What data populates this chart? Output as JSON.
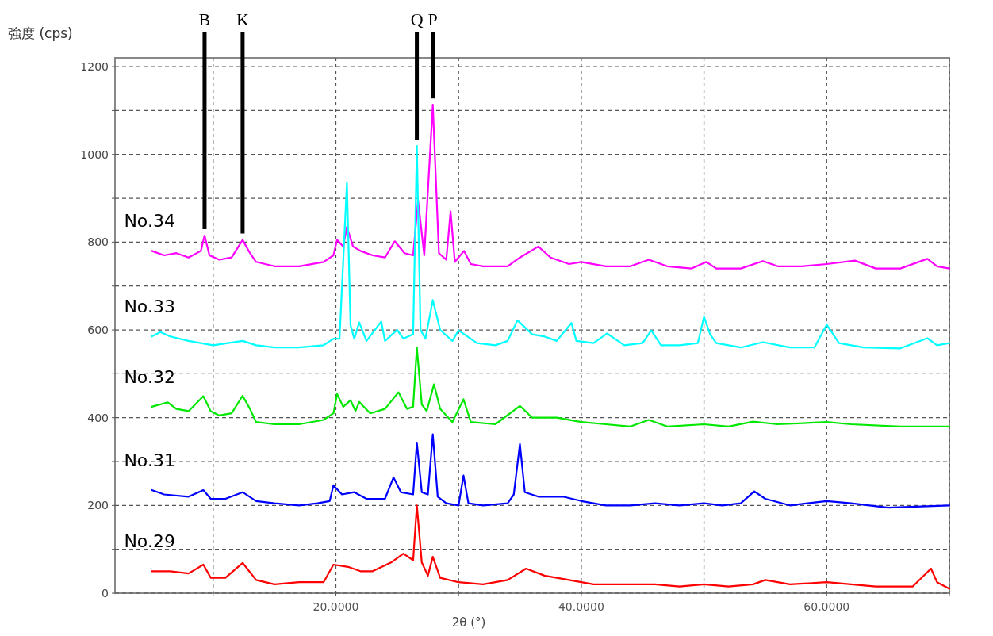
{
  "chart_data": {
    "type": "line",
    "xlabel": "2θ (°)",
    "ylabel": "強度 (cps)",
    "xlim": [
      2,
      70
    ],
    "ylim": [
      0,
      1220
    ],
    "xticks": [
      {
        "value": 10,
        "label": null
      },
      {
        "value": 20,
        "label": "20.0000"
      },
      {
        "value": 30,
        "label": null
      },
      {
        "value": 40,
        "label": "40.0000"
      },
      {
        "value": 50,
        "label": null
      },
      {
        "value": 60,
        "label": "60.0000"
      },
      {
        "value": 70,
        "label": null
      }
    ],
    "yticks": [
      0,
      {
        "value": 100,
        "label": null
      },
      200,
      {
        "value": 300,
        "label": null
      },
      400,
      {
        "value": 500,
        "label": null
      },
      600,
      {
        "value": 700,
        "label": null
      },
      800,
      {
        "value": 900,
        "label": null
      },
      1000,
      {
        "value": 1100,
        "label": null
      },
      1200
    ],
    "grid": true,
    "annotations": [
      {
        "text": "B",
        "x": 9.3,
        "y": 815
      },
      {
        "text": "K",
        "x": 12.4,
        "y": 805
      },
      {
        "text": "Q",
        "x": 26.6,
        "y": 1019
      },
      {
        "text": "P",
        "x": 27.9,
        "y": 1113
      }
    ],
    "series": [
      {
        "name": "No.34",
        "color": "#ff00ff",
        "x": [
          5,
          6,
          7,
          8,
          9,
          9.3,
          9.7,
          10.5,
          11.5,
          12.4,
          13,
          13.5,
          15,
          17,
          19,
          19.8,
          20.1,
          20.6,
          20.9,
          21.4,
          22,
          23,
          24,
          24.8,
          25.6,
          26.3,
          26.7,
          27.2,
          27.9,
          28.4,
          29,
          29.35,
          29.7,
          30.45,
          31,
          32,
          34,
          35,
          36.5,
          37.5,
          39,
          40,
          42,
          44,
          45.5,
          47,
          49,
          50.2,
          51,
          53,
          54.8,
          56,
          58,
          60,
          62.3,
          64,
          66,
          68.2,
          69,
          70
        ],
        "values": [
          780,
          770,
          775,
          765,
          780,
          815,
          770,
          760,
          765,
          805,
          775,
          755,
          745,
          745,
          755,
          770,
          805,
          790,
          835,
          790,
          780,
          770,
          765,
          802,
          775,
          770,
          895,
          770,
          1113,
          775,
          760,
          870,
          755,
          780,
          750,
          745,
          745,
          765,
          790,
          765,
          750,
          755,
          745,
          745,
          760,
          745,
          740,
          755,
          740,
          740,
          757,
          745,
          745,
          750,
          758,
          740,
          740,
          762,
          745,
          740
        ]
      },
      {
        "name": "No.33",
        "color": "#00ffff",
        "x": [
          5,
          5.7,
          6.5,
          8,
          10,
          12.4,
          13.5,
          15,
          17,
          19,
          19.8,
          20.3,
          20.9,
          21.2,
          21.5,
          21.9,
          22.5,
          23.7,
          24,
          25,
          25.5,
          26.3,
          26.6,
          26.9,
          27.3,
          27.9,
          28.5,
          29.5,
          30,
          31.5,
          33,
          34,
          34.8,
          36,
          37,
          38,
          39.2,
          39.6,
          41,
          42.1,
          43.5,
          45,
          45.7,
          46.5,
          48,
          49.5,
          50,
          50.5,
          51,
          53,
          54.8,
          57,
          59,
          60,
          61,
          63,
          66,
          68.2,
          69,
          70
        ],
        "values": [
          585,
          595,
          585,
          575,
          565,
          575,
          565,
          560,
          560,
          565,
          580,
          580,
          935,
          610,
          580,
          617,
          575,
          619,
          575,
          600,
          580,
          590,
          1019,
          600,
          580,
          668,
          600,
          575,
          599,
          570,
          565,
          575,
          622,
          590,
          585,
          575,
          616,
          575,
          570,
          592,
          565,
          570,
          599,
          565,
          565,
          570,
          630,
          590,
          570,
          560,
          572,
          560,
          560,
          612,
          570,
          560,
          558,
          581,
          565,
          570
        ]
      },
      {
        "name": "No.32",
        "color": "#00e800",
        "x": [
          5,
          6.3,
          7,
          8,
          9.2,
          9.8,
          10.5,
          11.5,
          12.4,
          13,
          13.5,
          15,
          17,
          19,
          19.8,
          20.1,
          20.6,
          21.2,
          21.6,
          21.9,
          22.8,
          24,
          25.1,
          25.8,
          26.3,
          26.6,
          27,
          27.4,
          28,
          28.5,
          29.5,
          30.4,
          31,
          33,
          35,
          36,
          38,
          40,
          42,
          44,
          45.5,
          47,
          50,
          52,
          54,
          56,
          60,
          62,
          66,
          70
        ],
        "values": [
          425,
          435,
          420,
          415,
          449,
          415,
          405,
          410,
          450,
          420,
          390,
          385,
          385,
          395,
          410,
          454,
          425,
          440,
          415,
          436,
          410,
          420,
          458,
          420,
          425,
          560,
          430,
          415,
          476,
          420,
          390,
          442,
          390,
          385,
          427,
          400,
          400,
          390,
          385,
          380,
          395,
          380,
          385,
          380,
          391,
          385,
          390,
          385,
          380,
          380
        ]
      },
      {
        "name": "No.31",
        "color": "#0000ff",
        "x": [
          5,
          6,
          8,
          9.2,
          9.8,
          11,
          12.4,
          13.5,
          15,
          17,
          18.5,
          19.5,
          19.8,
          20.5,
          21.5,
          22.5,
          24,
          24.7,
          25.3,
          26.3,
          26.6,
          27,
          27.5,
          27.9,
          28.3,
          29,
          30,
          30.4,
          30.8,
          32,
          34,
          34.5,
          35,
          35.4,
          36.5,
          38.5,
          40,
          42,
          44,
          46,
          48,
          50,
          51.5,
          53,
          54.1,
          55,
          57,
          60,
          62,
          65,
          70
        ],
        "values": [
          235,
          225,
          220,
          235,
          215,
          215,
          230,
          210,
          205,
          200,
          205,
          210,
          246,
          225,
          230,
          215,
          215,
          264,
          230,
          225,
          343,
          230,
          225,
          362,
          220,
          205,
          200,
          268,
          205,
          200,
          205,
          225,
          340,
          230,
          220,
          220,
          210,
          200,
          200,
          205,
          200,
          205,
          200,
          205,
          232,
          215,
          200,
          210,
          205,
          195,
          200
        ]
      },
      {
        "name": "No.29",
        "color": "#ff0000",
        "x": [
          5,
          6.5,
          8,
          9.2,
          9.8,
          11,
          12.4,
          13.5,
          15,
          17,
          19,
          19.8,
          21,
          22,
          23,
          24.5,
          25.5,
          26.3,
          26.6,
          27,
          27.5,
          27.9,
          28.5,
          30,
          32,
          34,
          35.5,
          37,
          39,
          41,
          44,
          46,
          48,
          50,
          52,
          54,
          55,
          57,
          60,
          62,
          64,
          67,
          68.5,
          69,
          70
        ],
        "values": [
          50,
          50,
          45,
          65,
          35,
          35,
          69,
          30,
          20,
          25,
          25,
          65,
          60,
          50,
          50,
          70,
          90,
          75,
          200,
          70,
          40,
          83,
          35,
          25,
          20,
          30,
          56,
          40,
          30,
          20,
          20,
          20,
          15,
          20,
          15,
          20,
          30,
          20,
          25,
          20,
          15,
          15,
          56,
          25,
          10
        ]
      }
    ]
  }
}
